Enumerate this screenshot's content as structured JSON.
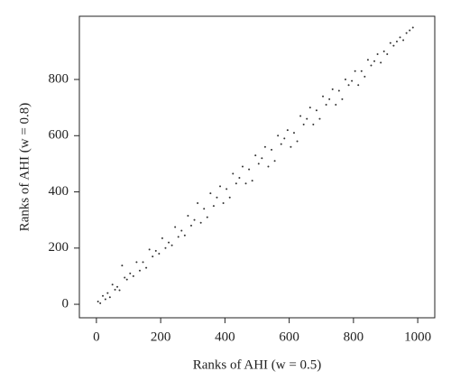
{
  "chart_data": {
    "type": "scatter",
    "xlabel": "Ranks of AHI (w = 0.5)",
    "ylabel": "Ranks of AHI (w = 0.8)",
    "color": "#333333",
    "xlim": [
      -53,
      1053
    ],
    "ylim": [
      -48,
      1025
    ],
    "xticks": [
      0,
      200,
      400,
      600,
      800,
      1000
    ],
    "yticks": [
      0,
      200,
      400,
      600,
      800
    ],
    "x": [
      5,
      12,
      20,
      28,
      35,
      42,
      50,
      58,
      65,
      72,
      80,
      88,
      95,
      105,
      115,
      125,
      135,
      145,
      155,
      165,
      175,
      185,
      195,
      205,
      215,
      225,
      235,
      245,
      255,
      265,
      275,
      285,
      295,
      305,
      315,
      325,
      335,
      345,
      355,
      365,
      375,
      385,
      395,
      405,
      415,
      425,
      435,
      445,
      455,
      465,
      475,
      485,
      495,
      505,
      515,
      525,
      535,
      545,
      555,
      565,
      575,
      585,
      595,
      605,
      615,
      625,
      635,
      645,
      655,
      665,
      675,
      685,
      695,
      705,
      715,
      725,
      735,
      745,
      755,
      765,
      775,
      785,
      795,
      805,
      815,
      825,
      835,
      845,
      855,
      865,
      875,
      885,
      895,
      905,
      915,
      925,
      935,
      945,
      955,
      965,
      975,
      985
    ],
    "y": [
      10,
      4,
      30,
      18,
      40,
      25,
      70,
      52,
      62,
      50,
      138,
      95,
      88,
      110,
      100,
      150,
      120,
      150,
      130,
      195,
      170,
      190,
      180,
      235,
      200,
      220,
      210,
      275,
      240,
      262,
      245,
      315,
      280,
      300,
      360,
      290,
      340,
      310,
      395,
      350,
      380,
      420,
      360,
      410,
      380,
      465,
      430,
      450,
      490,
      430,
      480,
      440,
      530,
      500,
      520,
      560,
      490,
      550,
      510,
      600,
      570,
      590,
      620,
      560,
      610,
      580,
      670,
      640,
      660,
      700,
      640,
      690,
      660,
      740,
      710,
      730,
      765,
      710,
      760,
      730,
      800,
      780,
      795,
      830,
      780,
      830,
      810,
      870,
      850,
      865,
      890,
      860,
      900,
      890,
      930,
      920,
      935,
      950,
      940,
      965,
      975,
      985
    ]
  }
}
